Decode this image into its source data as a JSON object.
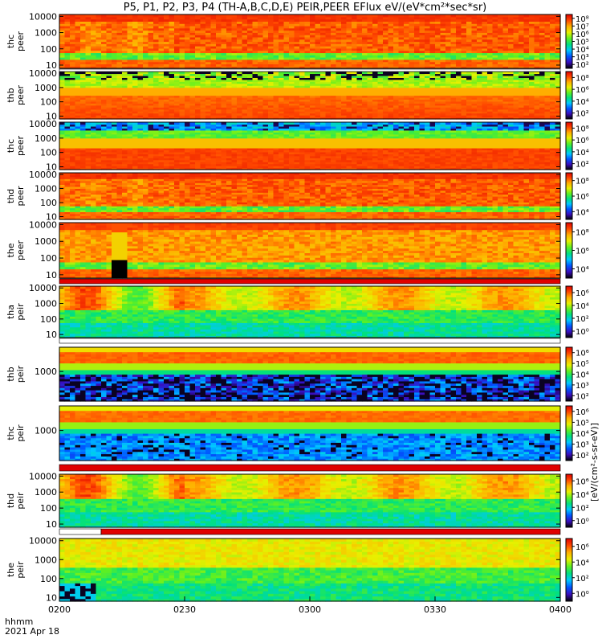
{
  "title": "P5, P1, P2, P3, P4 (TH-A,B,C,D,E) PEIR,PEER EFlux eV/(eV*cm²*sec*sr)",
  "footer": {
    "time_label": "hhmm",
    "date_label": "2021 Apr 18"
  },
  "colors": {
    "ramp": [
      "#000000",
      "#3a0dbd",
      "#0055ff",
      "#00c8ff",
      "#00e080",
      "#60f020",
      "#e8f000",
      "#ffb000",
      "#ff4800",
      "#e00000"
    ],
    "bar_red": "#e00000",
    "bar_white": "#ffffff"
  },
  "chart_data": {
    "type": "heatmap",
    "x_axis": {
      "ticks": [
        "0200",
        "0230",
        "0300",
        "0330",
        "0400"
      ],
      "tick_values_min": [
        0,
        30,
        60,
        90,
        120
      ],
      "range_min": [
        0,
        120
      ],
      "label": "hhmm"
    },
    "colorbar_label": "[eV/(cm²-s-sr-eV)]",
    "panels": [
      {
        "probe": "thc",
        "product": "peer",
        "ylabel": "thc peer",
        "yticks": [
          "10",
          "100",
          "1000",
          "10000"
        ],
        "cbar_ticks": [
          "10²",
          "10³",
          "10⁴",
          "10⁵",
          "10⁶",
          "10⁷",
          "10⁸"
        ],
        "pattern": "peer_dynamic",
        "seed": 1
      },
      {
        "probe": "thb",
        "product": "peer",
        "ylabel": "thb peer",
        "yticks": [
          "10",
          "100",
          "1000",
          "10000"
        ],
        "cbar_ticks": [
          "10²",
          "10⁴",
          "10⁶",
          "10⁸"
        ],
        "pattern": "peer_steady",
        "seed": 2
      },
      {
        "probe": "thc",
        "product": "peer",
        "ylabel": "thc peer",
        "yticks": [
          "10",
          "100",
          "1000",
          "10000"
        ],
        "cbar_ticks": [
          "10²",
          "10⁴",
          "10⁶",
          "10⁸"
        ],
        "pattern": "peer_steady_blue",
        "seed": 3
      },
      {
        "probe": "thd",
        "product": "peer",
        "ylabel": "thd peer",
        "yticks": [
          "10",
          "100",
          "1000",
          "10000"
        ],
        "cbar_ticks": [
          "10⁴",
          "10⁶",
          "10⁸"
        ],
        "pattern": "peer_dynamic",
        "seed": 4
      },
      {
        "probe": "the",
        "product": "peer",
        "ylabel": "the peer",
        "yticks": [
          "10",
          "100",
          "1000",
          "10000"
        ],
        "cbar_ticks": [
          "10⁴",
          "10⁶",
          "10⁸"
        ],
        "pattern": "peer_dynamic_gap",
        "seed": 5
      },
      {
        "probe": "tha",
        "product": "peir",
        "ylabel": "tha peir",
        "yticks": [
          "10",
          "100",
          "1000",
          "10000"
        ],
        "cbar_ticks": [
          "10⁰",
          "10²",
          "10⁴",
          "10⁶"
        ],
        "pattern": "peir_green",
        "seed": 6
      },
      {
        "probe": "thb",
        "product": "peir",
        "ylabel": "thb peir",
        "yticks": [
          "1000"
        ],
        "cbar_ticks": [
          "10²",
          "10³",
          "10⁴",
          "10⁵",
          "10⁶"
        ],
        "pattern": "peir_band",
        "seed": 7
      },
      {
        "probe": "thc",
        "product": "peir",
        "ylabel": "thc peir",
        "yticks": [
          "1000"
        ],
        "cbar_ticks": [
          "10²",
          "10³",
          "10⁴",
          "10⁵",
          "10⁶"
        ],
        "pattern": "peir_band_blue",
        "seed": 8
      },
      {
        "probe": "thd",
        "product": "peir",
        "ylabel": "thd peir",
        "yticks": [
          "10",
          "100",
          "1000",
          "10000"
        ],
        "cbar_ticks": [
          "10⁰",
          "10²",
          "10⁴",
          "10⁶"
        ],
        "pattern": "peir_green",
        "seed": 9
      },
      {
        "probe": "the",
        "product": "peir",
        "ylabel": "the peir",
        "yticks": [
          "10",
          "100",
          "1000",
          "10000"
        ],
        "cbar_ticks": [
          "10⁰",
          "10²",
          "10⁴",
          "10⁶"
        ],
        "pattern": "peir_green_early",
        "seed": 10
      }
    ],
    "mode_bars": [
      {
        "after_panel": 0,
        "segments": [
          {
            "from_min": 0,
            "to_min": 120,
            "color": "white"
          }
        ]
      },
      {
        "after_panel": 4,
        "segments": [
          {
            "from_min": 0,
            "to_min": 120,
            "color": "red"
          }
        ]
      },
      {
        "after_panel": 5,
        "segments": [
          {
            "from_min": 0,
            "to_min": 120,
            "color": "white"
          }
        ]
      },
      {
        "after_panel": 7,
        "segments": [
          {
            "from_min": 0,
            "to_min": 120,
            "color": "red"
          }
        ]
      },
      {
        "after_panel": 8,
        "segments": [
          {
            "from_min": 0,
            "to_min": 10,
            "color": "white"
          },
          {
            "from_min": 10,
            "to_min": 120,
            "color": "red"
          }
        ]
      }
    ]
  }
}
